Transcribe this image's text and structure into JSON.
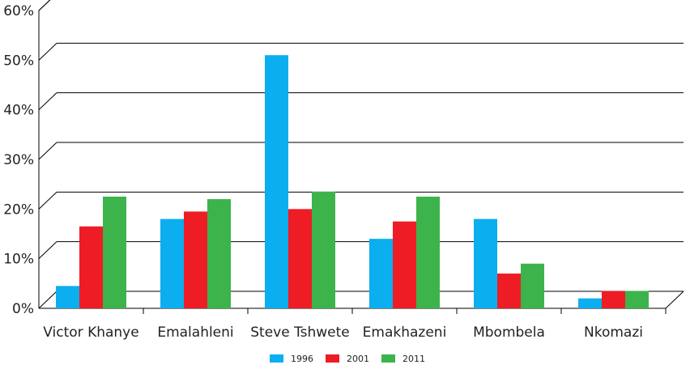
{
  "chart_data": {
    "type": "bar",
    "title": "",
    "xlabel": "",
    "ylabel": "",
    "categories": [
      "Victor Khanye",
      "Emalahleni",
      "Steve Tshwete",
      "Emakhazeni",
      "Mbombela",
      "Nkomazi"
    ],
    "series": [
      {
        "name": "1996",
        "color": "#0BAEEF",
        "values": [
          4.5,
          18,
          51,
          14,
          18,
          2
        ]
      },
      {
        "name": "2001",
        "color": "#EE1C25",
        "values": [
          16.5,
          19.5,
          20,
          17.5,
          7,
          3.5
        ]
      },
      {
        "name": "2011",
        "color": "#3CB44B",
        "values": [
          22.5,
          22,
          23.5,
          22.5,
          9,
          3.5
        ]
      }
    ],
    "ylim": [
      0,
      60
    ],
    "y_ticks": [
      "0%",
      "10%",
      "20%",
      "30%",
      "40%",
      "50%",
      "60%"
    ],
    "grid": true,
    "legend_position": "bottom"
  }
}
